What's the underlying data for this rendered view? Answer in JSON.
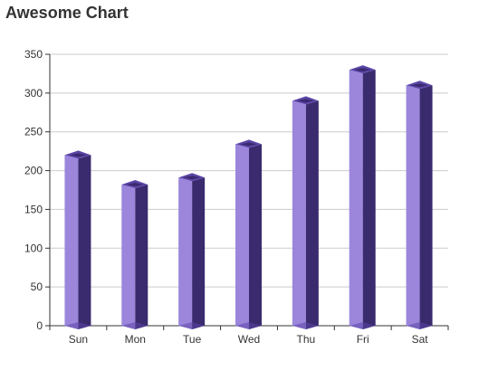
{
  "chart_data": {
    "type": "bar",
    "title": "Awesome Chart",
    "categories": [
      "Sun",
      "Mon",
      "Tue",
      "Wed",
      "Thu",
      "Fri",
      "Sat"
    ],
    "values": [
      220,
      182,
      191,
      234,
      290,
      330,
      310
    ],
    "ylim": [
      0,
      350
    ],
    "yticks": [
      0,
      50,
      100,
      150,
      200,
      250,
      300,
      350
    ],
    "grid": true,
    "style": "3d-bar",
    "colors": {
      "front": "#9b86dc",
      "side": "#3a2a6e",
      "top": "#5b45a8",
      "top_inner": "#3a2a6e",
      "grid": "#cccccc",
      "axis": "#333333"
    }
  }
}
